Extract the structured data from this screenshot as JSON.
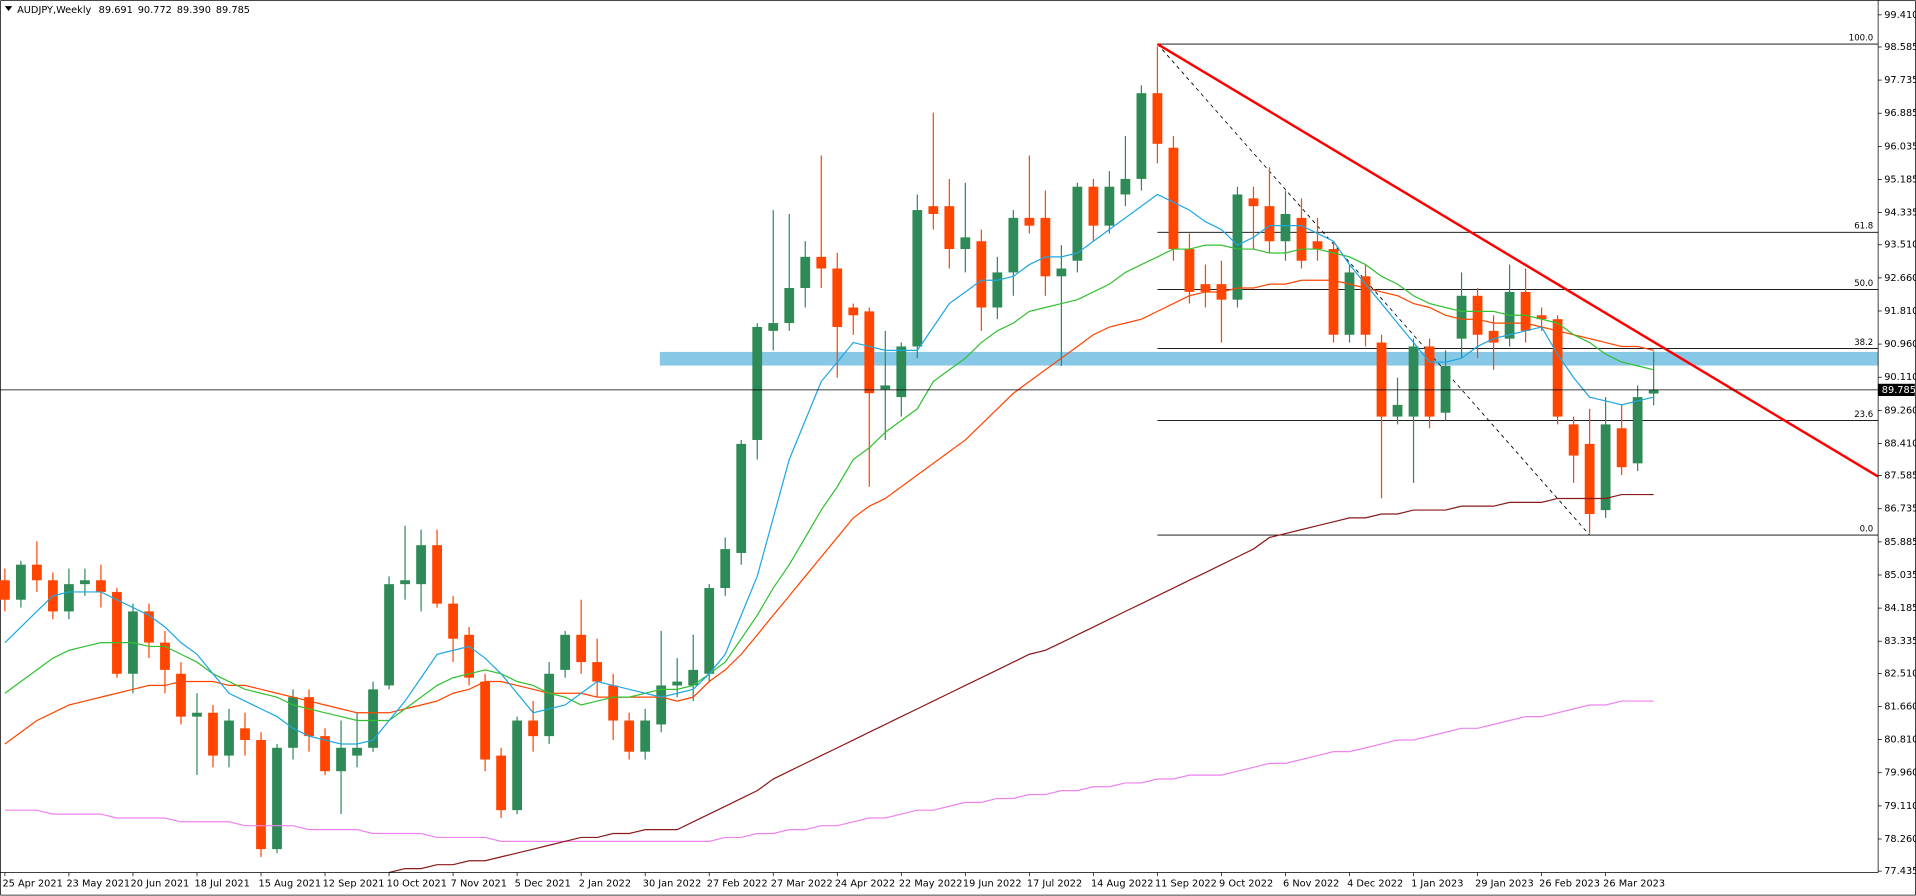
{
  "chart_data": {
    "type": "candlestick",
    "title": "AUDJPY,Weekly",
    "title_values": [
      "89.691",
      "90.772",
      "89.390",
      "89.785"
    ],
    "categories": [
      "25 Apr 2021",
      null,
      null,
      null,
      "23 May 2021",
      null,
      null,
      null,
      "20 Jun 2021",
      null,
      null,
      null,
      "18 Jul 2021",
      null,
      null,
      null,
      "15 Aug 2021",
      null,
      null,
      null,
      "12 Sep 2021",
      null,
      null,
      null,
      "10 Oct 2021",
      null,
      null,
      null,
      "7 Nov 2021",
      null,
      null,
      null,
      "5 Dec 2021",
      null,
      null,
      null,
      "2 Jan 2022",
      null,
      null,
      null,
      "30 Jan 2022",
      null,
      null,
      null,
      "27 Feb 2022",
      null,
      null,
      null,
      "27 Mar 2022",
      null,
      null,
      null,
      "24 Apr 2022",
      null,
      null,
      null,
      "22 May 2022",
      null,
      null,
      null,
      "19 Jun 2022",
      null,
      null,
      null,
      "17 Jul 2022",
      null,
      null,
      null,
      "14 Aug 2022",
      null,
      null,
      null,
      "11 Sep 2022",
      null,
      null,
      null,
      "9 Oct 2022",
      null,
      null,
      null,
      "6 Nov 2022",
      null,
      null,
      null,
      "4 Dec 2022",
      null,
      null,
      null,
      "1 Jan 2023",
      null,
      null,
      null,
      "29 Jan 2023",
      null,
      null,
      null,
      "26 Feb 2023",
      null,
      null,
      null,
      "26 Mar 2023",
      null,
      null,
      null
    ],
    "open": [
      84.9,
      84.4,
      85.3,
      84.9,
      84.1,
      84.8,
      84.9,
      84.6,
      82.5,
      84.1,
      83.3,
      82.5,
      81.4,
      81.5,
      80.4,
      81.1,
      80.8,
      78.0,
      80.6,
      81.9,
      80.9,
      80.0,
      80.4,
      80.6,
      82.2,
      84.8,
      84.8,
      85.8,
      84.3,
      83.5,
      82.3,
      80.4,
      79.0,
      81.3,
      80.9,
      82.6,
      83.5,
      82.8,
      82.2,
      81.3,
      80.5,
      81.2,
      82.2,
      82.2,
      82.5,
      84.7,
      85.6,
      88.5,
      91.3,
      91.5,
      92.4,
      93.2,
      92.9,
      91.9,
      91.8,
      89.8,
      89.6,
      90.9,
      94.5,
      94.5,
      93.4,
      93.6,
      91.9,
      92.8,
      94.2,
      94.2,
      92.7,
      93.1,
      95.0,
      94.0,
      94.8,
      95.2,
      97.4,
      96.0,
      93.4,
      92.5,
      92.5,
      92.1,
      94.7,
      94.5,
      93.6,
      94.2,
      93.6,
      93.4,
      91.2,
      92.7,
      91.0,
      89.1,
      89.1,
      90.9,
      89.2,
      91.1,
      92.2,
      91.3,
      91.1,
      92.3,
      91.7,
      91.6,
      88.9,
      88.4,
      86.7,
      88.8,
      87.9,
      89.691
    ],
    "high": [
      85.2,
      85.4,
      85.9,
      85.1,
      85.2,
      85.2,
      85.3,
      84.7,
      84.3,
      84.3,
      83.6,
      82.8,
      82.0,
      81.7,
      81.6,
      81.5,
      81.0,
      80.7,
      82.1,
      82.1,
      81.1,
      81.3,
      81.5,
      82.3,
      85.0,
      86.3,
      86.2,
      86.2,
      84.5,
      83.7,
      82.5,
      80.6,
      81.4,
      81.8,
      82.8,
      83.6,
      84.4,
      83.4,
      82.5,
      81.5,
      81.6,
      83.6,
      82.9,
      83.5,
      84.8,
      86.0,
      88.5,
      91.5,
      94.4,
      94.3,
      93.6,
      95.8,
      93.3,
      92.0,
      91.9,
      91.3,
      91.0,
      94.8,
      96.9,
      95.2,
      95.1,
      93.9,
      93.2,
      94.4,
      95.8,
      94.9,
      93.5,
      95.1,
      95.2,
      95.4,
      96.3,
      97.6,
      98.6,
      96.3,
      93.8,
      93.0,
      93.1,
      95.0,
      95.0,
      95.5,
      94.9,
      94.7,
      94.2,
      93.6,
      93.0,
      93.0,
      91.2,
      90.1,
      91.1,
      91.1,
      90.8,
      92.8,
      92.4,
      91.7,
      93.0,
      92.9,
      91.9,
      91.7,
      89.1,
      89.3,
      89.6,
      89.4,
      89.9,
      90.772
    ],
    "low": [
      84.1,
      84.2,
      84.6,
      83.9,
      83.9,
      84.5,
      84.2,
      82.4,
      82.0,
      82.9,
      82.0,
      81.2,
      79.9,
      80.1,
      80.1,
      80.4,
      77.8,
      77.9,
      80.3,
      80.5,
      79.9,
      78.9,
      80.1,
      80.5,
      82.1,
      84.4,
      84.1,
      84.2,
      82.8,
      82.2,
      80.0,
      78.8,
      78.9,
      80.5,
      80.7,
      82.4,
      82.5,
      81.9,
      80.8,
      80.3,
      80.3,
      81.0,
      81.9,
      81.8,
      82.3,
      84.5,
      85.3,
      88.0,
      90.8,
      91.3,
      91.9,
      92.4,
      90.1,
      91.2,
      87.3,
      88.5,
      89.1,
      90.6,
      93.9,
      92.9,
      92.8,
      91.3,
      91.6,
      92.2,
      93.8,
      92.2,
      90.4,
      92.8,
      93.6,
      93.8,
      94.5,
      94.9,
      95.6,
      93.1,
      92.0,
      91.9,
      91.0,
      91.9,
      93.4,
      93.3,
      93.1,
      92.9,
      93.1,
      91.0,
      91.0,
      90.9,
      87.0,
      88.9,
      87.4,
      88.8,
      89.0,
      90.6,
      90.6,
      90.3,
      90.9,
      91.0,
      91.3,
      88.9,
      87.4,
      86.1,
      86.5,
      87.6,
      87.7,
      89.39
    ],
    "close": [
      84.4,
      85.3,
      84.9,
      84.1,
      84.8,
      84.9,
      84.6,
      82.5,
      84.1,
      83.3,
      82.6,
      81.4,
      81.5,
      80.4,
      81.3,
      80.8,
      78.0,
      80.6,
      81.9,
      80.9,
      80.0,
      80.6,
      80.6,
      82.1,
      84.8,
      84.9,
      85.8,
      84.3,
      83.4,
      82.4,
      80.3,
      79.0,
      81.3,
      80.9,
      82.5,
      83.5,
      82.8,
      82.3,
      81.3,
      80.5,
      81.3,
      82.2,
      82.3,
      82.6,
      84.7,
      85.7,
      88.4,
      91.4,
      91.5,
      92.4,
      93.2,
      92.9,
      91.4,
      91.7,
      89.7,
      89.9,
      90.9,
      94.4,
      94.3,
      93.4,
      93.7,
      91.9,
      92.8,
      94.2,
      94.0,
      92.7,
      92.9,
      95.0,
      94.0,
      95.0,
      95.2,
      97.4,
      96.1,
      93.4,
      92.3,
      92.3,
      92.1,
      94.8,
      94.5,
      93.6,
      94.3,
      93.1,
      93.4,
      91.2,
      92.8,
      91.2,
      89.1,
      89.4,
      90.9,
      89.1,
      90.4,
      92.2,
      91.2,
      91.0,
      92.3,
      91.3,
      91.6,
      89.1,
      88.1,
      86.6,
      88.9,
      87.8,
      89.6,
      89.785
    ],
    "up_color": "#2e8b57",
    "down_color": "#ff4500",
    "series": [
      {
        "color": "#ee82ee",
        "values": [
          79.0,
          79.0,
          79.0,
          78.9,
          78.9,
          78.9,
          78.9,
          78.8,
          78.8,
          78.8,
          78.8,
          78.7,
          78.7,
          78.7,
          78.7,
          78.6,
          78.6,
          78.6,
          78.6,
          78.5,
          78.5,
          78.5,
          78.5,
          78.4,
          78.4,
          78.4,
          78.4,
          78.3,
          78.3,
          78.3,
          78.3,
          78.2,
          78.2,
          78.2,
          78.2,
          78.2,
          78.2,
          78.2,
          78.2,
          78.2,
          78.2,
          78.2,
          78.2,
          78.2,
          78.2,
          78.3,
          78.3,
          78.4,
          78.4,
          78.5,
          78.5,
          78.6,
          78.6,
          78.7,
          78.8,
          78.8,
          78.9,
          79.0,
          79.0,
          79.1,
          79.2,
          79.2,
          79.3,
          79.3,
          79.4,
          79.4,
          79.5,
          79.5,
          79.6,
          79.6,
          79.7,
          79.7,
          79.8,
          79.8,
          79.9,
          79.9,
          79.9,
          80.0,
          80.1,
          80.2,
          80.2,
          80.3,
          80.4,
          80.5,
          80.5,
          80.6,
          80.7,
          80.8,
          80.8,
          80.9,
          81.0,
          81.1,
          81.1,
          81.2,
          81.3,
          81.4,
          81.4,
          81.5,
          81.6,
          81.7,
          81.7,
          81.8,
          81.8,
          81.8
        ]
      },
      {
        "color": "#8b1a1a",
        "values": [
          null,
          null,
          null,
          null,
          null,
          null,
          null,
          null,
          null,
          null,
          null,
          null,
          null,
          null,
          null,
          null,
          null,
          null,
          null,
          null,
          null,
          null,
          null,
          null,
          77.4,
          77.5,
          77.5,
          77.6,
          77.6,
          77.7,
          77.7,
          77.8,
          77.9,
          78.0,
          78.1,
          78.2,
          78.3,
          78.3,
          78.4,
          78.4,
          78.5,
          78.5,
          78.5,
          78.7,
          78.9,
          79.1,
          79.3,
          79.5,
          79.8,
          80.0,
          80.2,
          80.4,
          80.6,
          80.8,
          81.0,
          81.2,
          81.4,
          81.6,
          81.8,
          82.0,
          82.2,
          82.4,
          82.6,
          82.8,
          83.0,
          83.1,
          83.3,
          83.5,
          83.7,
          83.9,
          84.1,
          84.3,
          84.5,
          84.7,
          84.9,
          85.1,
          85.3,
          85.5,
          85.7,
          86.0,
          86.1,
          86.2,
          86.3,
          86.4,
          86.5,
          86.5,
          86.6,
          86.6,
          86.7,
          86.7,
          86.7,
          86.8,
          86.8,
          86.8,
          86.9,
          86.9,
          86.9,
          87.0,
          87.0,
          87.0,
          87.0,
          87.1,
          87.1,
          87.1
        ]
      },
      {
        "color": "#ff4500",
        "values": [
          80.7,
          81.0,
          81.3,
          81.5,
          81.7,
          81.8,
          81.9,
          82.0,
          82.1,
          82.2,
          82.2,
          82.3,
          82.3,
          82.3,
          82.2,
          82.2,
          82.1,
          82.0,
          81.9,
          81.8,
          81.7,
          81.6,
          81.5,
          81.5,
          81.5,
          81.6,
          81.7,
          81.8,
          82.0,
          82.1,
          82.3,
          82.3,
          82.2,
          82.1,
          82.0,
          82.0,
          82.0,
          81.9,
          81.9,
          81.9,
          81.9,
          81.9,
          81.8,
          81.9,
          82.3,
          82.6,
          83.0,
          83.5,
          84.0,
          84.5,
          85.0,
          85.5,
          86.0,
          86.5,
          86.8,
          87.0,
          87.3,
          87.6,
          87.9,
          88.2,
          88.5,
          88.9,
          89.3,
          89.7,
          90.0,
          90.3,
          90.6,
          90.9,
          91.2,
          91.4,
          91.5,
          91.6,
          91.8,
          92.0,
          92.2,
          92.3,
          92.3,
          92.4,
          92.4,
          92.5,
          92.5,
          92.6,
          92.6,
          92.6,
          92.5,
          92.4,
          92.3,
          92.2,
          92.0,
          91.9,
          91.7,
          91.6,
          91.6,
          91.5,
          91.5,
          91.5,
          91.4,
          91.3,
          91.2,
          91.1,
          91.0,
          90.9,
          90.9,
          90.8
        ]
      },
      {
        "color": "#32c032",
        "values": [
          82.0,
          82.3,
          82.6,
          82.9,
          83.1,
          83.2,
          83.3,
          83.3,
          83.3,
          83.2,
          83.2,
          83.0,
          82.8,
          82.5,
          82.3,
          82.1,
          82.0,
          81.9,
          81.7,
          81.6,
          81.5,
          81.4,
          81.3,
          81.3,
          81.3,
          81.6,
          81.9,
          82.2,
          82.4,
          82.5,
          82.6,
          82.5,
          82.3,
          82.2,
          82.0,
          81.9,
          81.7,
          81.8,
          81.9,
          81.9,
          82.0,
          82.1,
          82.1,
          82.2,
          82.5,
          82.8,
          83.4,
          84.0,
          84.7,
          85.3,
          86.0,
          86.7,
          87.3,
          88.0,
          88.3,
          88.7,
          89.0,
          89.3,
          90.0,
          90.3,
          90.6,
          91.0,
          91.3,
          91.5,
          91.8,
          91.9,
          92.0,
          92.1,
          92.3,
          92.5,
          92.8,
          93.0,
          93.2,
          93.4,
          93.4,
          93.5,
          93.5,
          93.4,
          93.4,
          93.3,
          93.3,
          93.4,
          93.4,
          93.3,
          93.2,
          93.0,
          92.7,
          92.5,
          92.2,
          92.0,
          91.9,
          91.8,
          91.8,
          91.8,
          91.7,
          91.7,
          91.6,
          91.5,
          91.2,
          91.0,
          90.7,
          90.5,
          90.4,
          90.3
        ]
      },
      {
        "color": "#1ea7e1",
        "values": [
          83.3,
          83.7,
          84.1,
          84.5,
          84.6,
          84.6,
          84.6,
          84.4,
          84.2,
          84.0,
          83.7,
          83.3,
          83.0,
          82.5,
          82.0,
          81.8,
          81.6,
          81.4,
          81.1,
          80.9,
          80.8,
          80.7,
          80.7,
          80.8,
          81.3,
          81.8,
          82.4,
          83.0,
          83.1,
          83.2,
          82.9,
          82.5,
          82.0,
          81.5,
          81.6,
          81.7,
          82.0,
          82.3,
          82.2,
          82.1,
          82.0,
          81.9,
          82.0,
          82.1,
          82.5,
          83.0,
          84.0,
          85.0,
          86.5,
          88.0,
          89.0,
          90.0,
          90.5,
          91.0,
          90.9,
          90.8,
          90.8,
          90.8,
          91.4,
          92.0,
          92.3,
          92.6,
          92.6,
          92.7,
          93.0,
          93.2,
          93.2,
          93.3,
          93.6,
          93.9,
          94.2,
          94.5,
          94.8,
          94.6,
          94.4,
          94.1,
          93.9,
          93.5,
          93.7,
          94.0,
          94.0,
          94.0,
          93.8,
          93.6,
          93.0,
          92.5,
          92.0,
          91.5,
          91.0,
          90.5,
          90.5,
          90.6,
          90.9,
          91.1,
          91.2,
          91.3,
          91.4,
          90.7,
          90.1,
          89.6,
          89.5,
          89.4,
          89.5,
          89.6
        ]
      }
    ],
    "ylim": [
      77.4,
      99.79
    ],
    "yticks": [
      {
        "value": 99.41,
        "label": "99.410"
      },
      98.585,
      97.735,
      96.885,
      96.035,
      95.185,
      94.335,
      {
        "value": 93.51,
        "label": "93.510"
      },
      {
        "value": 92.66,
        "label": "92.660"
      },
      {
        "value": 91.81,
        "label": "91.810"
      },
      {
        "value": 90.96,
        "label": "90.960"
      },
      {
        "value": 90.11,
        "label": "90.110"
      },
      {
        "value": 89.26,
        "label": "89.260"
      },
      {
        "value": 88.41,
        "label": "88.410"
      },
      87.585,
      86.735,
      85.885,
      85.035,
      84.185,
      83.335,
      {
        "value": 82.51,
        "label": "82.510"
      },
      {
        "value": 81.66,
        "label": "81.660"
      },
      {
        "value": 80.81,
        "label": "80.810"
      },
      {
        "value": 79.96,
        "label": "79.960"
      },
      {
        "value": 79.11,
        "label": "79.110"
      },
      {
        "value": 78.26,
        "label": "78.260"
      },
      77.435
    ],
    "fibonacci": {
      "color": "#000000",
      "levels": [
        {
          "value": 100,
          "label": "100.0"
        },
        61.8,
        {
          "value": 50,
          "label": "50.0"
        },
        38.2,
        23.6,
        {
          "value": 0,
          "label": "0.0"
        }
      ],
      "prices": [
        98.66,
        93.83,
        92.36,
        90.85,
        89.0,
        86.06
      ]
    },
    "trendline": {
      "color": "#ff0000",
      "values": [
        98.66,
        87.56
      ]
    },
    "zone": {
      "color": "#87c8e6",
      "values": [
        90.41,
        90.76
      ]
    }
  }
}
